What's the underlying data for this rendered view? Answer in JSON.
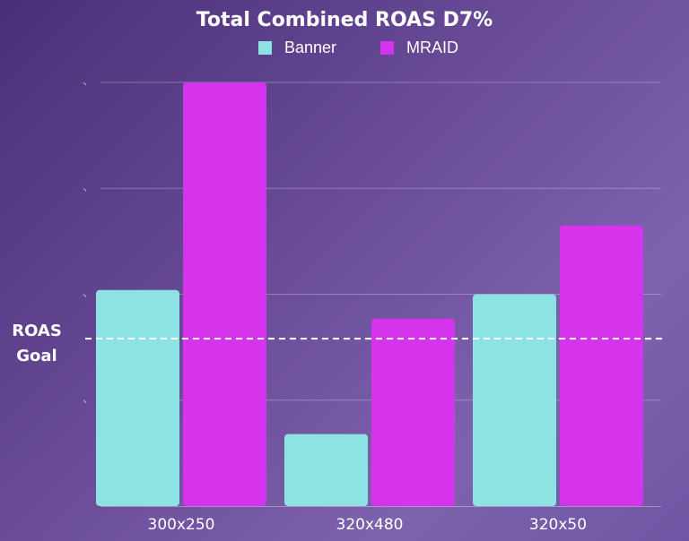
{
  "chart_data": {
    "type": "bar",
    "title": "Total Combined ROAS D7%",
    "categories": [
      "300x250",
      "320x480",
      "320x50"
    ],
    "series": [
      {
        "name": "Banner",
        "color": "#8de2e4",
        "values": [
          2.04,
          0.68,
          2.0
        ]
      },
      {
        "name": "MRAID",
        "color": "#d633ec",
        "values": [
          4.0,
          1.77,
          2.65
        ]
      }
    ],
    "ylim": [
      0,
      4
    ],
    "y_gridlines": [
      1,
      2,
      3,
      4
    ],
    "y_tick_labels_visible": false,
    "reference_line": {
      "label_line1": "ROAS",
      "label_line2": "Goal",
      "value": 1.58,
      "style": "dashed",
      "color": "#ffffff"
    },
    "grid": true,
    "legend_position": "top-center"
  }
}
